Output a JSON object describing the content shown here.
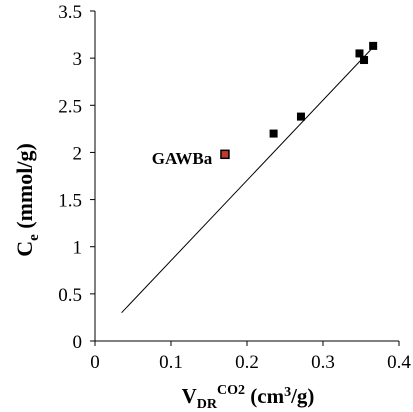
{
  "chart_data": {
    "type": "scatter",
    "xlabel": {
      "main": "V",
      "sub": "DR",
      "sup": "CO2",
      "unit": " (cm",
      "unit_sup": "3",
      "unit_end": "/g)"
    },
    "ylabel": {
      "main": "C",
      "sub": "e",
      "unit": " (mmol/g)"
    },
    "xlim": [
      0,
      0.4
    ],
    "ylim": [
      0,
      3.5
    ],
    "x_ticks": [
      "0",
      "0.1",
      "0.2",
      "0.3",
      "0.4"
    ],
    "x_tick_values": [
      0,
      0.1,
      0.2,
      0.3,
      0.4
    ],
    "y_ticks": [
      "0",
      "0.5",
      "1",
      "1.5",
      "2",
      "2.5",
      "3",
      "3.5"
    ],
    "y_tick_values": [
      0,
      0.5,
      1,
      1.5,
      2,
      2.5,
      3,
      3.5
    ],
    "grid": false,
    "points": [
      {
        "x": 0.235,
        "y": 2.2
      },
      {
        "x": 0.271,
        "y": 2.38
      },
      {
        "x": 0.348,
        "y": 3.05
      },
      {
        "x": 0.354,
        "y": 2.98
      },
      {
        "x": 0.366,
        "y": 3.13
      }
    ],
    "highlight_point": {
      "x": 0.171,
      "y": 1.98,
      "label": "GAWBa"
    },
    "fit_line": {
      "x": [
        0.035,
        0.37
      ],
      "y": [
        0.3,
        3.15
      ]
    },
    "colors": {
      "marker": "#000000",
      "highlight_fill": "#c0392b",
      "axis": "#000000"
    }
  }
}
